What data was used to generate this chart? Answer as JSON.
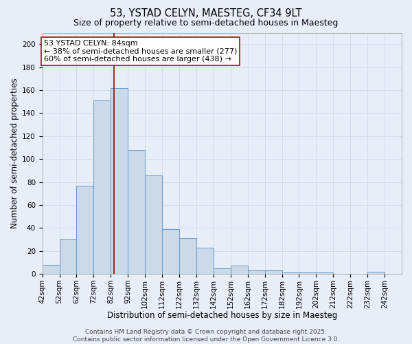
{
  "title_line1": "53, YSTAD CELYN, MAESTEG, CF34 9LT",
  "title_line2": "Size of property relative to semi-detached houses in Maesteg",
  "xlabel": "Distribution of semi-detached houses by size in Maesteg",
  "ylabel": "Number of semi-detached properties",
  "bin_edges": [
    42,
    52,
    62,
    72,
    82,
    92,
    102,
    112,
    122,
    132,
    142,
    152,
    162,
    172,
    182,
    192,
    202,
    212,
    222,
    232,
    242,
    252
  ],
  "counts": [
    8,
    30,
    77,
    151,
    162,
    108,
    86,
    39,
    31,
    23,
    5,
    7,
    3,
    3,
    1,
    1,
    1,
    0,
    0,
    2,
    0
  ],
  "property_size": 84,
  "bar_facecolor": "#ccd9e8",
  "bar_edgecolor": "#6699cc",
  "vline_color": "#990000",
  "grid_color": "#d0d8e8",
  "background_color": "#e8eef8",
  "annotation_text_line1": "53 YSTAD CELYN: 84sqm",
  "annotation_text_line2": "← 38% of semi-detached houses are smaller (277)",
  "annotation_text_line3": "60% of semi-detached houses are larger (438) →",
  "annotation_box_facecolor": "#ffffff",
  "annotation_box_edgecolor": "#cc0000",
  "ylim": [
    0,
    210
  ],
  "yticks": [
    0,
    20,
    40,
    60,
    80,
    100,
    120,
    140,
    160,
    180,
    200
  ],
  "footer_text": "Contains HM Land Registry data © Crown copyright and database right 2025.\nContains public sector information licensed under the Open Government Licence 3.0.",
  "title_fontsize": 10.5,
  "subtitle_fontsize": 9,
  "axis_label_fontsize": 8.5,
  "tick_fontsize": 7.5,
  "annotation_fontsize": 8,
  "footer_fontsize": 6.5
}
